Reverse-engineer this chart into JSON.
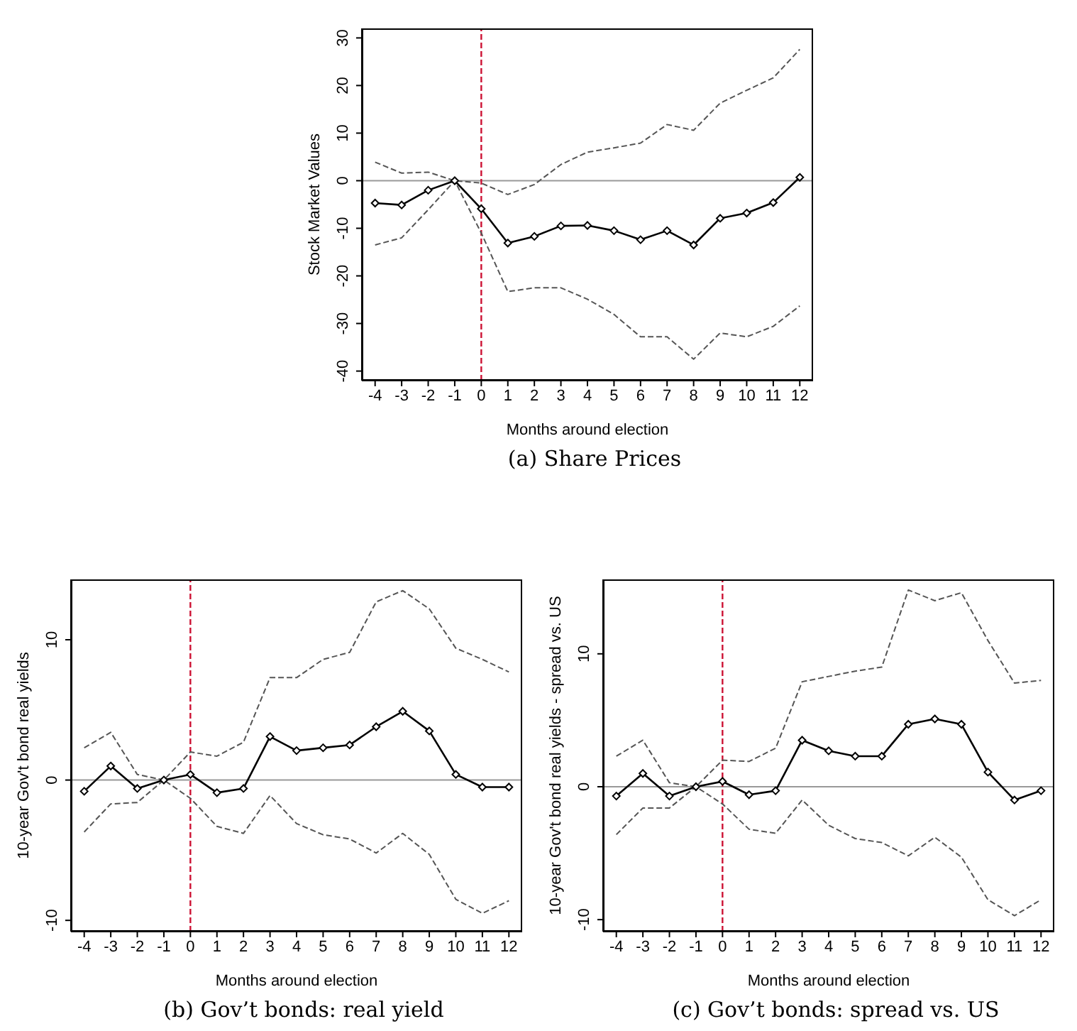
{
  "chart_data": [
    {
      "type": "line",
      "title": "(a) Share Prices",
      "xlabel": "Months around election",
      "ylabel": "Stock Market Values",
      "x": [
        -4,
        -3,
        -2,
        -1,
        0,
        1,
        2,
        3,
        4,
        5,
        6,
        7,
        8,
        9,
        10,
        11,
        12
      ],
      "xlim": [
        -4.5,
        12.5
      ],
      "xticks": [
        -4,
        -3,
        -2,
        -1,
        0,
        1,
        2,
        3,
        4,
        5,
        6,
        7,
        8,
        9,
        10,
        11,
        12
      ],
      "ylim": [
        -42,
        32
      ],
      "yticks": [
        -40,
        -30,
        -20,
        -10,
        0,
        10,
        20,
        30
      ],
      "series": [
        {
          "color": "#000000",
          "marker": "diamond",
          "line_style": "solid",
          "values": [
            -4.7,
            -5.1,
            -2,
            0,
            -5.9,
            -13.1,
            -11.7,
            -9.5,
            -9.4,
            -10.5,
            -12.4,
            -10.5,
            -13.5,
            -7.9,
            -6.8,
            -4.6,
            0.7
          ]
        },
        {
          "color": "#555555",
          "marker": "none",
          "line_style": "dashed",
          "values": [
            3.9,
            1.6,
            1.8,
            0,
            -0.5,
            -2.9,
            -0.8,
            3.4,
            6,
            6.9,
            7.9,
            11.8,
            10.6,
            16.3,
            19,
            21.6,
            27.6
          ]
        },
        {
          "color": "#555555",
          "marker": "none",
          "line_style": "dashed",
          "values": [
            -13.5,
            -12,
            -6.1,
            0,
            -11,
            -23.3,
            -22.5,
            -22.5,
            -24.9,
            -28.1,
            -32.8,
            -32.8,
            -37.5,
            -32,
            -32.8,
            -30.6,
            -26.3
          ]
        }
      ],
      "ref_lines": [
        {
          "axis": "y",
          "value": 0,
          "color": "#999999",
          "line_style": "solid"
        },
        {
          "axis": "x",
          "value": 0,
          "color": "#cc1133",
          "line_style": "dashed"
        }
      ]
    },
    {
      "type": "line",
      "title": "(b) Gov’t bonds: real yield",
      "xlabel": "Months around election",
      "ylabel": "10-year Gov't bond real yields",
      "x": [
        -4,
        -3,
        -2,
        -1,
        0,
        1,
        2,
        3,
        4,
        5,
        6,
        7,
        8,
        9,
        10,
        11,
        12
      ],
      "xlim": [
        -4.5,
        12.5
      ],
      "xticks": [
        -4,
        -3,
        -2,
        -1,
        0,
        1,
        2,
        3,
        4,
        5,
        6,
        7,
        8,
        9,
        10,
        11,
        12
      ],
      "ylim": [
        -10.8,
        14.3
      ],
      "yticks": [
        -10,
        0,
        10
      ],
      "series": [
        {
          "color": "#000000",
          "marker": "diamond",
          "line_style": "solid",
          "values": [
            -0.8,
            1,
            -0.6,
            0,
            0.4,
            -0.9,
            -0.6,
            3.1,
            2.1,
            2.3,
            2.5,
            3.8,
            4.9,
            3.5,
            0.4,
            -0.5,
            -0.5
          ]
        },
        {
          "color": "#555555",
          "marker": "none",
          "line_style": "dashed",
          "values": [
            2.3,
            3.4,
            0.4,
            0,
            2,
            1.7,
            2.7,
            7.3,
            7.3,
            8.6,
            9.1,
            12.7,
            13.5,
            12.2,
            9.4,
            8.6,
            7.7
          ]
        },
        {
          "color": "#555555",
          "marker": "none",
          "line_style": "dashed",
          "values": [
            -3.7,
            -1.7,
            -1.6,
            0,
            -1.3,
            -3.3,
            -3.8,
            -1.1,
            -3.1,
            -3.9,
            -4.2,
            -5.2,
            -3.8,
            -5.3,
            -8.5,
            -9.5,
            -8.6
          ]
        }
      ],
      "ref_lines": [
        {
          "axis": "y",
          "value": 0,
          "color": "#999999",
          "line_style": "solid"
        },
        {
          "axis": "x",
          "value": 0,
          "color": "#cc1133",
          "line_style": "dashed"
        }
      ]
    },
    {
      "type": "line",
      "title": "(c) Gov’t bonds: spread vs. US",
      "xlabel": "Months around election",
      "ylabel": "10-year Gov't bond real yields - spread vs. US",
      "x": [
        -4,
        -3,
        -2,
        -1,
        0,
        1,
        2,
        3,
        4,
        5,
        6,
        7,
        8,
        9,
        10,
        11,
        12
      ],
      "xlim": [
        -4.5,
        12.5
      ],
      "xticks": [
        -4,
        -3,
        -2,
        -1,
        0,
        1,
        2,
        3,
        4,
        5,
        6,
        7,
        8,
        9,
        10,
        11,
        12
      ],
      "ylim": [
        -10.9,
        15.6
      ],
      "yticks": [
        -10,
        0,
        10
      ],
      "series": [
        {
          "color": "#000000",
          "marker": "diamond",
          "line_style": "solid",
          "values": [
            -0.7,
            1,
            -0.7,
            0,
            0.4,
            -0.6,
            -0.3,
            3.5,
            2.7,
            2.3,
            2.3,
            4.7,
            5.1,
            4.7,
            1.1,
            -1,
            -0.3
          ]
        },
        {
          "color": "#555555",
          "marker": "none",
          "line_style": "dashed",
          "values": [
            2.3,
            3.5,
            0.3,
            0,
            2,
            1.9,
            2.9,
            7.9,
            8.3,
            8.7,
            9,
            14.8,
            14,
            14.6,
            11,
            7.8,
            8
          ]
        },
        {
          "color": "#555555",
          "marker": "none",
          "line_style": "dashed",
          "values": [
            -3.6,
            -1.6,
            -1.6,
            0,
            -1.3,
            -3.2,
            -3.5,
            -1,
            -2.9,
            -3.9,
            -4.2,
            -5.2,
            -3.8,
            -5.3,
            -8.5,
            -9.7,
            -8.5
          ]
        }
      ],
      "ref_lines": [
        {
          "axis": "y",
          "value": 0,
          "color": "#999999",
          "line_style": "solid"
        },
        {
          "axis": "x",
          "value": 0,
          "color": "#cc1133",
          "line_style": "dashed"
        }
      ]
    }
  ]
}
